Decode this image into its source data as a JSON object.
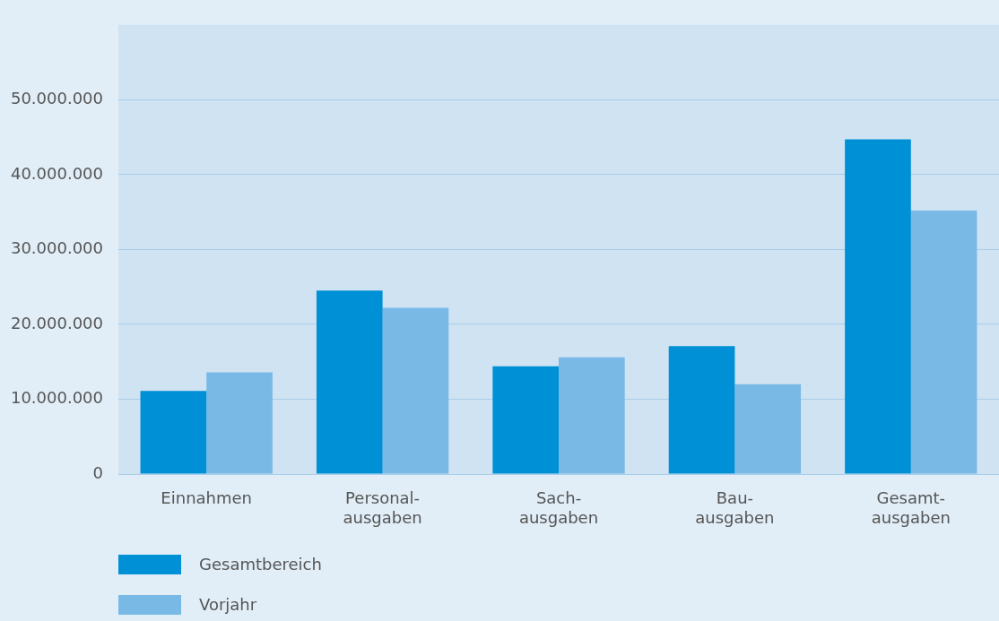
{
  "chart_data": {
    "type": "bar",
    "categories": [
      "Einnahmen",
      "Personal-\nausgaben",
      "Sach-\nausgaben",
      "Bau-\nausgaben",
      "Gesamt-\nausgaben"
    ],
    "series": [
      {
        "name": "Gesamtbereich",
        "color": "#0090d6",
        "values": [
          11100000,
          24500000,
          14400000,
          17100000,
          44700000
        ]
      },
      {
        "name": "Vorjahr",
        "color": "#78b9e6",
        "values": [
          13600000,
          22200000,
          15600000,
          12000000,
          35200000
        ]
      }
    ],
    "ylim": [
      0,
      60000000
    ],
    "yticks": [
      {
        "value": 0,
        "label": "0"
      },
      {
        "value": 10000000,
        "label": "10.000.000"
      },
      {
        "value": 20000000,
        "label": "20.000.000"
      },
      {
        "value": 30000000,
        "label": "30.000.000"
      },
      {
        "value": 40000000,
        "label": "40.000.000"
      },
      {
        "value": 50000000,
        "label": "50.000.000"
      }
    ],
    "grid": "y",
    "legend": "bottom left"
  }
}
